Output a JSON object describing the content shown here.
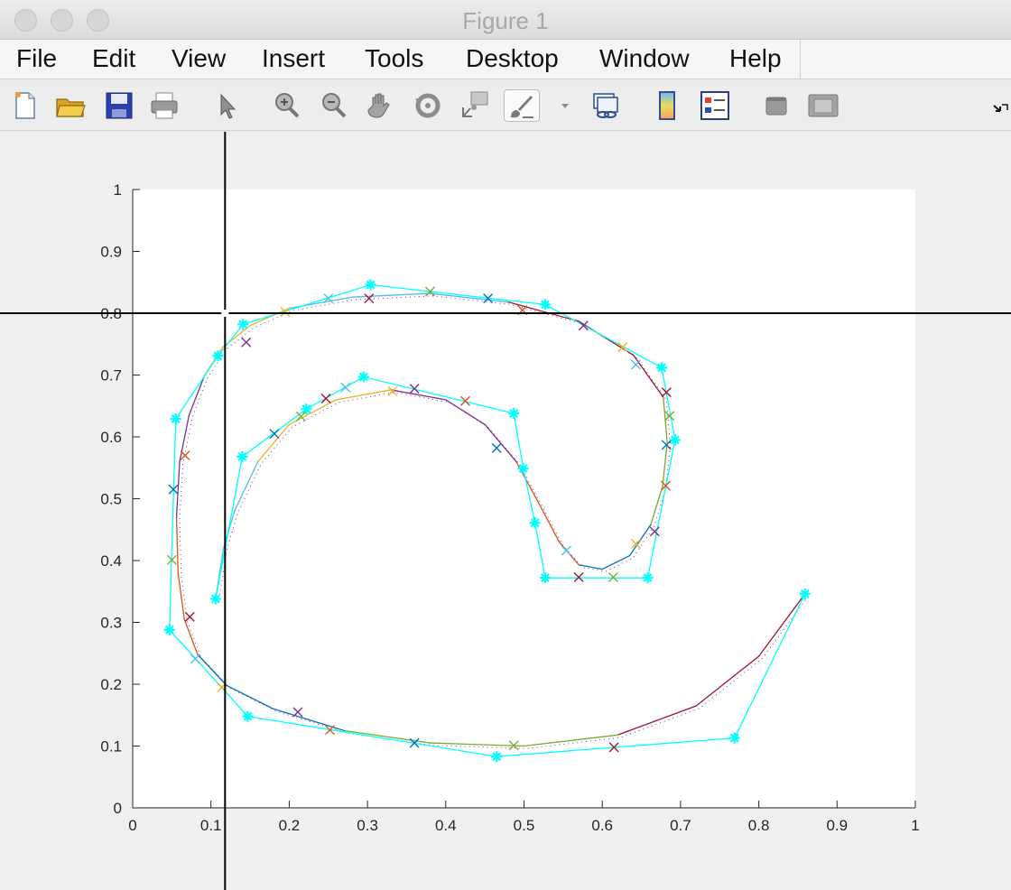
{
  "window": {
    "title": "Figure 1"
  },
  "menu": [
    "File",
    "Edit",
    "View",
    "Insert",
    "Tools",
    "Desktop",
    "Window",
    "Help"
  ],
  "toolbar": {
    "icons": [
      "new-figure-icon",
      "open-file-icon",
      "save-icon",
      "print-icon",
      "edit-plot-pointer-icon",
      "zoom-in-icon",
      "zoom-out-icon",
      "pan-hand-icon",
      "rotate-3d-icon",
      "data-cursor-icon",
      "brush-icon",
      "brush-dropdown-icon",
      "link-plot-icon",
      "insert-colorbar-icon",
      "insert-legend-icon",
      "hide-plot-tools-icon",
      "show-plot-tools-icon",
      "dock-figure-icon"
    ]
  },
  "colors": {
    "cyan": "#00ffff",
    "blue": "#0072bd",
    "orange": "#d95319",
    "yellow": "#edb120",
    "purple": "#7e2f8e",
    "green": "#77ac30",
    "lightblue": "#4dbeee",
    "red": "#a2142f"
  },
  "chart_data": {
    "type": "line",
    "xlim": [
      0,
      1
    ],
    "ylim": [
      0,
      1
    ],
    "xticks": [
      "0",
      "0.1",
      "0.2",
      "0.3",
      "0.4",
      "0.5",
      "0.6",
      "0.7",
      "0.8",
      "0.9",
      "1"
    ],
    "yticks": [
      "0",
      "0.1",
      "0.2",
      "0.3",
      "0.4",
      "0.5",
      "0.6",
      "0.7",
      "0.8",
      "0.9",
      "1"
    ],
    "crosshair": {
      "x": 0.118,
      "y": 0.8
    },
    "control_polygon": [
      [
        0.859,
        0.346
      ],
      [
        0.769,
        0.113
      ],
      [
        0.465,
        0.083
      ],
      [
        0.147,
        0.148
      ],
      [
        0.047,
        0.288
      ],
      [
        0.055,
        0.629
      ],
      [
        0.109,
        0.731
      ],
      [
        0.141,
        0.782
      ],
      [
        0.304,
        0.846
      ],
      [
        0.527,
        0.814
      ],
      [
        0.676,
        0.712
      ],
      [
        0.693,
        0.595
      ],
      [
        0.658,
        0.372
      ],
      [
        0.527,
        0.372
      ],
      [
        0.514,
        0.461
      ],
      [
        0.499,
        0.549
      ],
      [
        0.487,
        0.638
      ],
      [
        0.295,
        0.697
      ],
      [
        0.222,
        0.645
      ],
      [
        0.14,
        0.568
      ],
      [
        0.106,
        0.338
      ]
    ],
    "curve": [
      [
        0.859,
        0.346
      ],
      [
        0.8,
        0.245
      ],
      [
        0.72,
        0.165
      ],
      [
        0.62,
        0.118
      ],
      [
        0.5,
        0.1
      ],
      [
        0.38,
        0.105
      ],
      [
        0.27,
        0.125
      ],
      [
        0.18,
        0.16
      ],
      [
        0.12,
        0.198
      ],
      [
        0.083,
        0.248
      ],
      [
        0.066,
        0.305
      ],
      [
        0.058,
        0.38
      ],
      [
        0.056,
        0.47
      ],
      [
        0.06,
        0.56
      ],
      [
        0.072,
        0.635
      ],
      [
        0.092,
        0.7
      ],
      [
        0.115,
        0.745
      ],
      [
        0.15,
        0.78
      ],
      [
        0.2,
        0.808
      ],
      [
        0.28,
        0.826
      ],
      [
        0.38,
        0.832
      ],
      [
        0.48,
        0.818
      ],
      [
        0.57,
        0.787
      ],
      [
        0.64,
        0.732
      ],
      [
        0.678,
        0.664
      ],
      [
        0.683,
        0.59
      ],
      [
        0.677,
        0.52
      ],
      [
        0.662,
        0.458
      ],
      [
        0.635,
        0.408
      ],
      [
        0.6,
        0.386
      ],
      [
        0.57,
        0.393
      ],
      [
        0.545,
        0.43
      ],
      [
        0.52,
        0.49
      ],
      [
        0.49,
        0.56
      ],
      [
        0.45,
        0.62
      ],
      [
        0.4,
        0.66
      ],
      [
        0.33,
        0.676
      ],
      [
        0.26,
        0.66
      ],
      [
        0.2,
        0.62
      ],
      [
        0.16,
        0.56
      ],
      [
        0.13,
        0.48
      ],
      [
        0.116,
        0.42
      ],
      [
        0.106,
        0.338
      ]
    ],
    "x_markers": [
      [
        0.615,
        0.098
      ],
      [
        0.487,
        0.101
      ],
      [
        0.36,
        0.105
      ],
      [
        0.252,
        0.126
      ],
      [
        0.211,
        0.155
      ],
      [
        0.114,
        0.195
      ],
      [
        0.08,
        0.241
      ],
      [
        0.073,
        0.309
      ],
      [
        0.05,
        0.401
      ],
      [
        0.052,
        0.515
      ],
      [
        0.067,
        0.57
      ],
      [
        0.145,
        0.753
      ],
      [
        0.195,
        0.802
      ],
      [
        0.25,
        0.824
      ],
      [
        0.302,
        0.824
      ],
      [
        0.38,
        0.835
      ],
      [
        0.454,
        0.824
      ],
      [
        0.498,
        0.805
      ],
      [
        0.576,
        0.78
      ],
      [
        0.626,
        0.745
      ],
      [
        0.643,
        0.717
      ],
      [
        0.682,
        0.672
      ],
      [
        0.686,
        0.634
      ],
      [
        0.682,
        0.587
      ],
      [
        0.681,
        0.521
      ],
      [
        0.667,
        0.447
      ],
      [
        0.643,
        0.427
      ],
      [
        0.554,
        0.416
      ],
      [
        0.57,
        0.373
      ],
      [
        0.614,
        0.373
      ],
      [
        0.465,
        0.582
      ],
      [
        0.425,
        0.658
      ],
      [
        0.36,
        0.678
      ],
      [
        0.332,
        0.674
      ],
      [
        0.272,
        0.68
      ],
      [
        0.247,
        0.662
      ],
      [
        0.215,
        0.633
      ],
      [
        0.181,
        0.605
      ]
    ]
  }
}
